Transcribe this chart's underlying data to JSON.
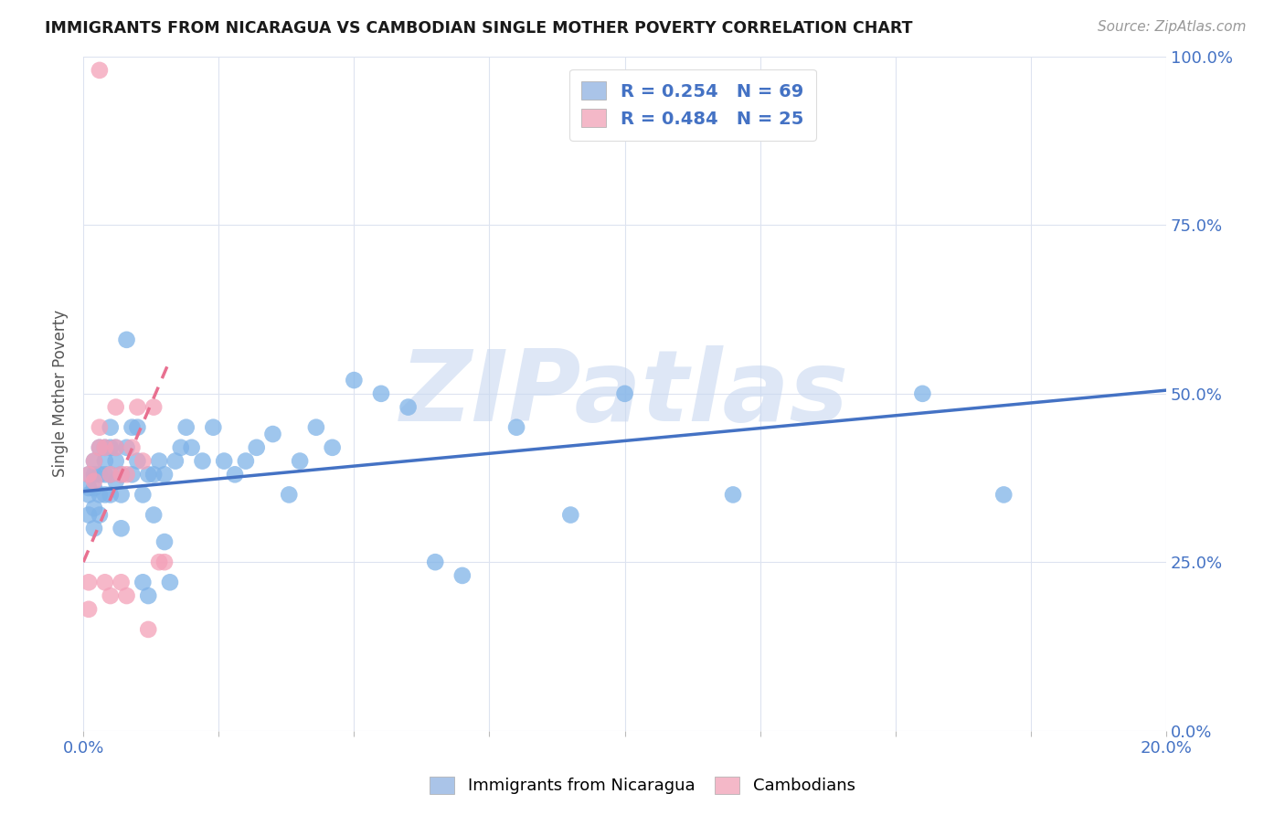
{
  "title": "IMMIGRANTS FROM NICARAGUA VS CAMBODIAN SINGLE MOTHER POVERTY CORRELATION CHART",
  "source": "Source: ZipAtlas.com",
  "ylabel": "Single Mother Poverty",
  "yticks": [
    "0.0%",
    "25.0%",
    "50.0%",
    "75.0%",
    "100.0%"
  ],
  "ytick_vals": [
    0.0,
    0.25,
    0.5,
    0.75,
    1.0
  ],
  "xlim": [
    0.0,
    0.2
  ],
  "ylim": [
    0.0,
    1.0
  ],
  "legend1_label": "R = 0.254   N = 69",
  "legend2_label": "R = 0.484   N = 25",
  "legend1_color": "#aac4e8",
  "legend2_color": "#f4b8c8",
  "series1_color": "#7fb3e8",
  "series2_color": "#f4a0b8",
  "trendline1_color": "#4472c4",
  "trendline2_color": "#e87090",
  "background_color": "#ffffff",
  "grid_color": "#dde3f0",
  "watermark": "ZIPatlas",
  "watermark_color": "#c8d8f0",
  "series1_x": [
    0.001,
    0.001,
    0.001,
    0.001,
    0.002,
    0.002,
    0.002,
    0.002,
    0.002,
    0.003,
    0.003,
    0.003,
    0.003,
    0.004,
    0.004,
    0.004,
    0.004,
    0.005,
    0.005,
    0.005,
    0.005,
    0.006,
    0.006,
    0.006,
    0.007,
    0.007,
    0.007,
    0.008,
    0.008,
    0.009,
    0.009,
    0.01,
    0.01,
    0.011,
    0.011,
    0.012,
    0.012,
    0.013,
    0.013,
    0.014,
    0.015,
    0.015,
    0.016,
    0.017,
    0.018,
    0.019,
    0.02,
    0.022,
    0.024,
    0.026,
    0.028,
    0.03,
    0.032,
    0.035,
    0.038,
    0.04,
    0.043,
    0.046,
    0.05,
    0.055,
    0.06,
    0.065,
    0.07,
    0.08,
    0.09,
    0.1,
    0.12,
    0.155,
    0.17
  ],
  "series1_y": [
    0.38,
    0.36,
    0.35,
    0.32,
    0.4,
    0.38,
    0.36,
    0.33,
    0.3,
    0.42,
    0.38,
    0.35,
    0.32,
    0.42,
    0.4,
    0.38,
    0.35,
    0.45,
    0.42,
    0.38,
    0.35,
    0.42,
    0.4,
    0.37,
    0.38,
    0.35,
    0.3,
    0.58,
    0.42,
    0.45,
    0.38,
    0.45,
    0.4,
    0.35,
    0.22,
    0.38,
    0.2,
    0.38,
    0.32,
    0.4,
    0.38,
    0.28,
    0.22,
    0.4,
    0.42,
    0.45,
    0.42,
    0.4,
    0.45,
    0.4,
    0.38,
    0.4,
    0.42,
    0.44,
    0.35,
    0.4,
    0.45,
    0.42,
    0.52,
    0.5,
    0.48,
    0.25,
    0.23,
    0.45,
    0.32,
    0.5,
    0.35,
    0.5,
    0.35
  ],
  "series2_x": [
    0.001,
    0.001,
    0.001,
    0.002,
    0.002,
    0.003,
    0.003,
    0.004,
    0.004,
    0.005,
    0.005,
    0.006,
    0.006,
    0.007,
    0.007,
    0.008,
    0.008,
    0.009,
    0.01,
    0.011,
    0.012,
    0.013,
    0.014,
    0.015,
    0.003
  ],
  "series2_y": [
    0.38,
    0.22,
    0.18,
    0.4,
    0.37,
    0.42,
    0.45,
    0.42,
    0.22,
    0.38,
    0.2,
    0.42,
    0.48,
    0.22,
    0.38,
    0.38,
    0.2,
    0.42,
    0.48,
    0.4,
    0.15,
    0.48,
    0.25,
    0.25,
    0.98
  ],
  "trendline1_x0": 0.0,
  "trendline1_x1": 0.2,
  "trendline1_y0": 0.355,
  "trendline1_y1": 0.505,
  "trendline2_x0": 0.0,
  "trendline2_x1": 0.016,
  "trendline2_y0": 0.25,
  "trendline2_y1": 0.55
}
